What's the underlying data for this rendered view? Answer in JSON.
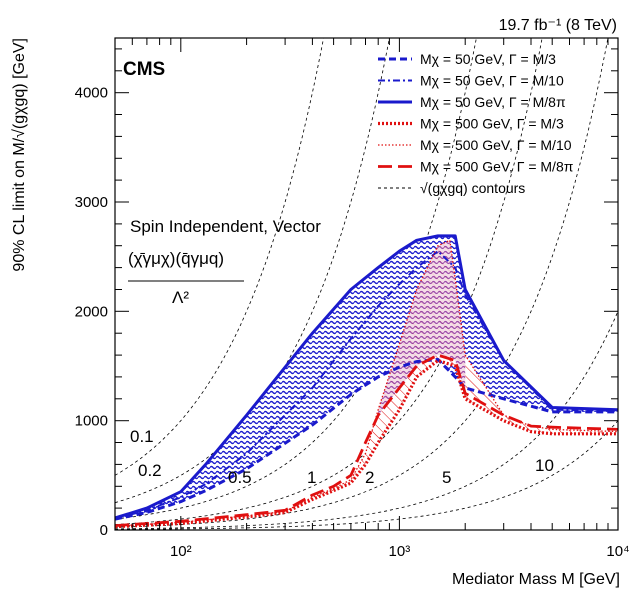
{
  "chart_data": {
    "type": "line",
    "title": "",
    "lumi_label": "19.7 fb⁻¹ (8 TeV)",
    "experiment_label": "CMS",
    "xlabel": "Mediator Mass M [GeV]",
    "ylabel": "90% CL limit on M/√(gχgq) [GeV]",
    "x_scale": "log",
    "xlim": [
      50,
      10000
    ],
    "ylim": [
      0,
      4500
    ],
    "x_ticks": [
      {
        "value": 100,
        "label": "10²"
      },
      {
        "value": 1000,
        "label": "10³"
      },
      {
        "value": 10000,
        "label": "10⁴"
      }
    ],
    "y_ticks": [
      0,
      1000,
      2000,
      3000,
      4000
    ],
    "grid": false,
    "legend_position": "top-right",
    "annotations": {
      "model": "Spin Independent, Vector",
      "operator_numerator": "(χ̄γμχ)(q̄γμq)",
      "operator_denominator": "Λ²"
    },
    "colors": {
      "blue": "#1a1acc",
      "red": "#e01010",
      "contour": "#000000"
    },
    "series": [
      {
        "name": "Mχ = 50 GeV, Γ = M/3",
        "color": "#1a1acc",
        "style": "dashed",
        "x": [
          50,
          70,
          100,
          130,
          200,
          400,
          600,
          800,
          1000,
          1200,
          1500,
          1800,
          2000,
          3000,
          5000,
          10000
        ],
        "y": [
          100,
          160,
          260,
          360,
          560,
          960,
          1240,
          1400,
          1490,
          1540,
          1560,
          1400,
          1300,
          1200,
          1080,
          1080
        ]
      },
      {
        "name": "Mχ = 50 GeV, Γ = M/10",
        "color": "#1a1acc",
        "style": "dashdot",
        "x": [
          50,
          70,
          100,
          130,
          200,
          400,
          600,
          800,
          1000,
          1200,
          1500,
          1800,
          2000,
          3000,
          5000,
          10000
        ],
        "y": [
          105,
          180,
          300,
          420,
          700,
          1300,
          1750,
          2050,
          2250,
          2400,
          2550,
          2400,
          2150,
          1550,
          1100,
          1090
        ]
      },
      {
        "name": "Mχ = 50 GeV, Γ = M/8π",
        "color": "#1a1acc",
        "style": "solid",
        "x": [
          50,
          70,
          100,
          130,
          200,
          400,
          600,
          800,
          1000,
          1200,
          1500,
          1800,
          2000,
          3000,
          5000,
          10000
        ],
        "y": [
          110,
          200,
          350,
          600,
          1050,
          1800,
          2200,
          2400,
          2550,
          2650,
          2690,
          2690,
          2200,
          1550,
          1120,
          1100
        ]
      },
      {
        "name": "Mχ = 500 GeV, Γ = M/3",
        "color": "#e01010",
        "style": "dotted-bold",
        "x": [
          50,
          100,
          200,
          300,
          400,
          500,
          600,
          700,
          800,
          1000,
          1200,
          1500,
          1800,
          2000,
          3000,
          4000,
          5000,
          10000
        ],
        "y": [
          30,
          60,
          120,
          160,
          280,
          360,
          430,
          600,
          800,
          1100,
          1400,
          1550,
          1500,
          1200,
          1000,
          900,
          880,
          880
        ]
      },
      {
        "name": "Mχ = 500 GeV, Γ = M/10",
        "color": "#e01010",
        "style": "dotted-fine",
        "x": [
          50,
          100,
          200,
          300,
          400,
          500,
          600,
          700,
          800,
          1000,
          1200,
          1500,
          1700,
          1800,
          2000,
          3000,
          4000,
          5000,
          10000
        ],
        "y": [
          35,
          70,
          130,
          170,
          300,
          380,
          460,
          700,
          1100,
          1700,
          2200,
          2600,
          2650,
          2300,
          1600,
          1050,
          950,
          920,
          900
        ]
      },
      {
        "name": "Mχ = 500 GeV, Γ = M/8π",
        "color": "#e01010",
        "style": "longdash",
        "x": [
          50,
          100,
          200,
          300,
          400,
          500,
          600,
          700,
          800,
          1000,
          1200,
          1500,
          1800,
          2000,
          3000,
          4000,
          5000,
          10000
        ],
        "y": [
          40,
          80,
          140,
          180,
          320,
          400,
          500,
          800,
          1050,
          1300,
          1500,
          1600,
          1550,
          1250,
          1050,
          950,
          940,
          920
        ]
      }
    ],
    "contours": [
      {
        "label": "0.1",
        "value": 0.1
      },
      {
        "label": "0.2",
        "value": 0.2
      },
      {
        "label": "0.5",
        "value": 0.5
      },
      {
        "label": "1",
        "value": 1
      },
      {
        "label": "2",
        "value": 2
      },
      {
        "label": "5",
        "value": 5
      },
      {
        "label": "10",
        "value": 10
      }
    ],
    "contour_legend_label": "√(gχgq) contours"
  }
}
